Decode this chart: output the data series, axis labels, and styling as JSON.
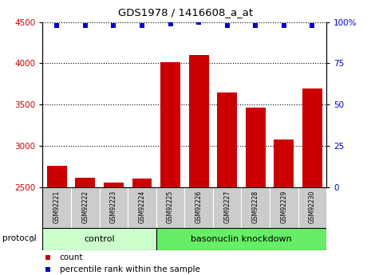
{
  "title": "GDS1978 / 1416608_a_at",
  "samples": [
    "GSM92221",
    "GSM92222",
    "GSM92223",
    "GSM92224",
    "GSM92225",
    "GSM92226",
    "GSM92227",
    "GSM92228",
    "GSM92229",
    "GSM92230"
  ],
  "bar_values": [
    2760,
    2610,
    2550,
    2600,
    4010,
    4100,
    3650,
    3460,
    3080,
    3690
  ],
  "percentile_values": [
    98,
    98,
    98,
    98,
    99,
    100,
    98,
    98,
    98,
    98
  ],
  "bar_color": "#cc0000",
  "dot_color": "#0000cc",
  "ylim_left": [
    2500,
    4500
  ],
  "ylim_right": [
    0,
    100
  ],
  "yticks_left": [
    2500,
    3000,
    3500,
    4000,
    4500
  ],
  "yticks_right": [
    0,
    25,
    50,
    75,
    100
  ],
  "yticklabels_right": [
    "0",
    "25",
    "50",
    "75",
    "100%"
  ],
  "control_label": "control",
  "knockdown_label": "basonuclin knockdown",
  "protocol_label": "protocol",
  "legend_count_label": "count",
  "legend_pct_label": "percentile rank within the sample",
  "control_color": "#ccffcc",
  "knockdown_color": "#66ee66",
  "bg_color": "#ffffff",
  "tick_bg_color": "#cccccc",
  "n_control": 4,
  "n_knockdown": 6
}
